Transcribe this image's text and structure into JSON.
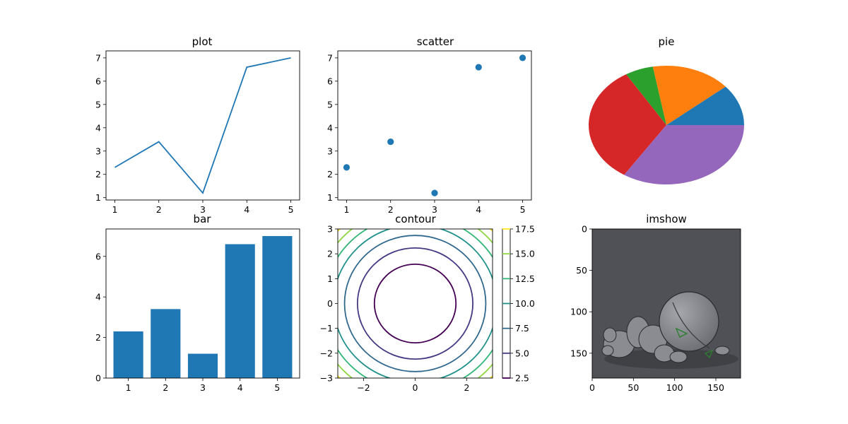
{
  "chart_data": [
    {
      "type": "line",
      "title": "plot",
      "xlabel": "",
      "ylabel": "",
      "x": [
        1,
        2,
        3,
        4,
        5
      ],
      "series": [
        {
          "values": [
            2.3,
            3.4,
            1.2,
            6.6,
            7.0
          ],
          "color": "#1f77b4"
        }
      ],
      "xlim": [
        0.8,
        5.2
      ],
      "ylim": [
        0.9,
        7.3
      ],
      "xticks": [
        1,
        2,
        3,
        4,
        5
      ],
      "yticks": [
        1,
        2,
        3,
        4,
        5,
        6,
        7
      ],
      "grid": false
    },
    {
      "type": "scatter",
      "title": "scatter",
      "xlabel": "",
      "ylabel": "",
      "x": [
        1,
        2,
        3,
        4,
        5
      ],
      "series": [
        {
          "values": [
            2.3,
            3.4,
            1.2,
            6.6,
            7.0
          ],
          "color": "#1f77b4"
        }
      ],
      "xlim": [
        0.8,
        5.2
      ],
      "ylim": [
        0.9,
        7.3
      ],
      "xticks": [
        1,
        2,
        3,
        4,
        5
      ],
      "yticks": [
        1,
        2,
        3,
        4,
        5,
        6,
        7
      ],
      "grid": false
    },
    {
      "type": "pie",
      "title": "pie",
      "values": [
        2.3,
        3.4,
        1.2,
        6.6,
        7.0
      ],
      "colors": [
        "#1f77b4",
        "#ff7f0e",
        "#2ca02c",
        "#d62728",
        "#9467bd"
      ]
    },
    {
      "type": "bar",
      "title": "bar",
      "xlabel": "",
      "ylabel": "",
      "categories": [
        "1",
        "2",
        "3",
        "4",
        "5"
      ],
      "values": [
        2.3,
        3.4,
        1.2,
        6.6,
        7.0
      ],
      "color": "#1f77b4",
      "ylim": [
        0,
        7.35
      ],
      "yticks": [
        0,
        2,
        4,
        6
      ],
      "grid": false
    },
    {
      "type": "contour",
      "title": "contour",
      "function": "x^2 + y^2",
      "xlim": [
        -3,
        3
      ],
      "ylim": [
        -3,
        3
      ],
      "xticks": [
        -2,
        0,
        2
      ],
      "yticks": [
        -3,
        -2,
        -1,
        0,
        1,
        2,
        3
      ],
      "levels": [
        2.5,
        5.0,
        7.5,
        10.0,
        12.5,
        15.0,
        17.5
      ],
      "level_colors": [
        "#440154",
        "#443983",
        "#31688e",
        "#21918c",
        "#35b779",
        "#90d743",
        "#fde725"
      ],
      "colorbar": {
        "range": [
          2.5,
          17.5
        ],
        "ticks": [
          2.5,
          5.0,
          7.5,
          10.0,
          12.5,
          15.0,
          17.5
        ],
        "tick_labels": [
          "2.5",
          "5.0",
          "7.5",
          "10.0",
          "12.5",
          "15.0",
          "17.5"
        ]
      }
    },
    {
      "type": "image",
      "title": "imshow",
      "xlim": [
        0,
        180
      ],
      "ylim": [
        180,
        0
      ],
      "xticks": [
        0,
        50,
        100,
        150
      ],
      "yticks": [
        0,
        50,
        100,
        150
      ],
      "background_color": "#4f5156",
      "subject_color": "#8a8c91",
      "accent_color": "#2e7d32"
    }
  ]
}
